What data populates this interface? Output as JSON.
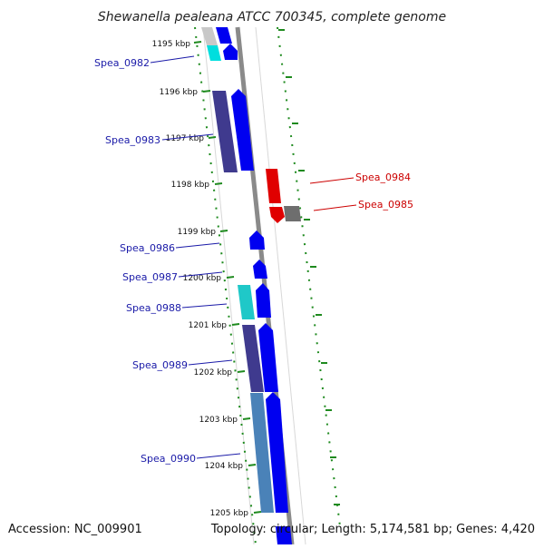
{
  "title": "Shewanella pealeana ATCC 700345, complete genome",
  "footer": {
    "accession": "Accession: NC_009901",
    "summary": "Topology: circular; Length: 5,174,581 bp; Genes: 4,420"
  },
  "colors": {
    "backbone": "#8a8a8a",
    "tick": "#1e8a1e",
    "forward_gene": "#0000f0",
    "reverse_gene": "#e00000",
    "forward_label": "#1a1aa8",
    "reverse_label": "#cc0000"
  },
  "ticks": [
    "1195 kbp",
    "1196 kbp",
    "1197 kbp",
    "1198 kbp",
    "1199 kbp",
    "1200 kbp",
    "1201 kbp",
    "1202 kbp",
    "1203 kbp",
    "1204 kbp",
    "1205 kbp"
  ],
  "genes_forward": [
    "Spea_0982",
    "Spea_0983",
    "Spea_0986",
    "Spea_0987",
    "Spea_0988",
    "Spea_0989",
    "Spea_0990"
  ],
  "genes_reverse": [
    "Spea_0984",
    "Spea_0985"
  ]
}
